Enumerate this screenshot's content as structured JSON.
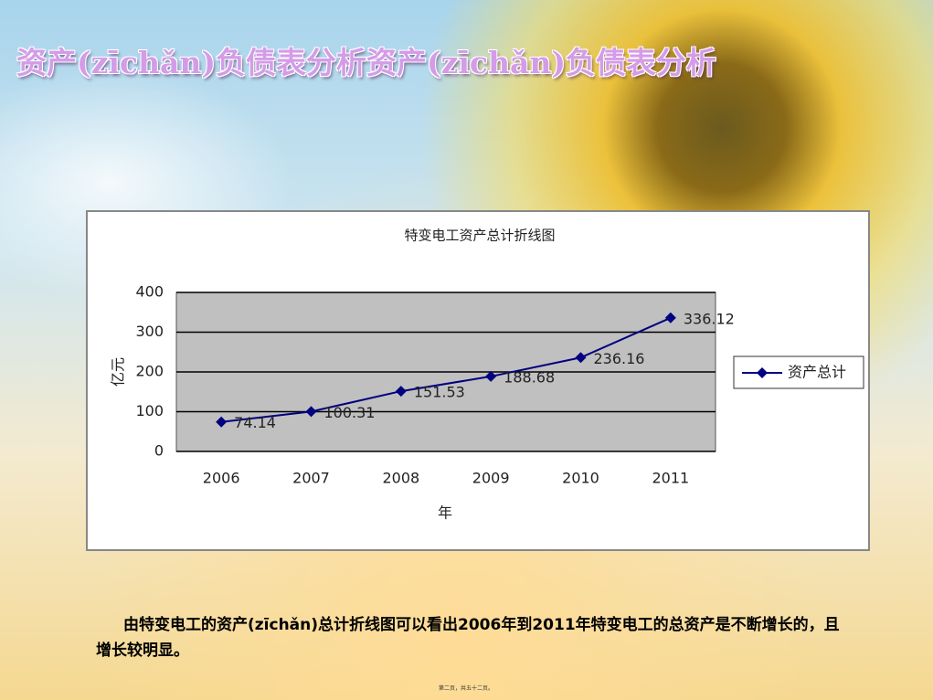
{
  "slide": {
    "title": "资产(zīchǎn)负债表分析资产(zīchǎn)负债表分析",
    "body": "由特变电工的资产(zīchǎn)总计折线图可以看出2006年到2011年特变电工的总资产是不断增长的，且增长较明显。",
    "footer": "第二页，共五十二页。"
  },
  "chart_data": {
    "type": "line",
    "title": "特变电工资产总计折线图",
    "y_label": "亿元",
    "x_label": "年",
    "categories": [
      "2006",
      "2007",
      "2008",
      "2009",
      "2010",
      "2011"
    ],
    "series": [
      {
        "name": "资产总计",
        "color": "#000080",
        "values": [
          74.14,
          100.31,
          151.53,
          188.68,
          236.16,
          336.12
        ]
      }
    ],
    "ylim": [
      0,
      400
    ],
    "yticks": [
      0,
      100,
      200,
      300,
      400
    ],
    "grid": true,
    "legend": "right",
    "plot_background": "#c0c0c0"
  }
}
